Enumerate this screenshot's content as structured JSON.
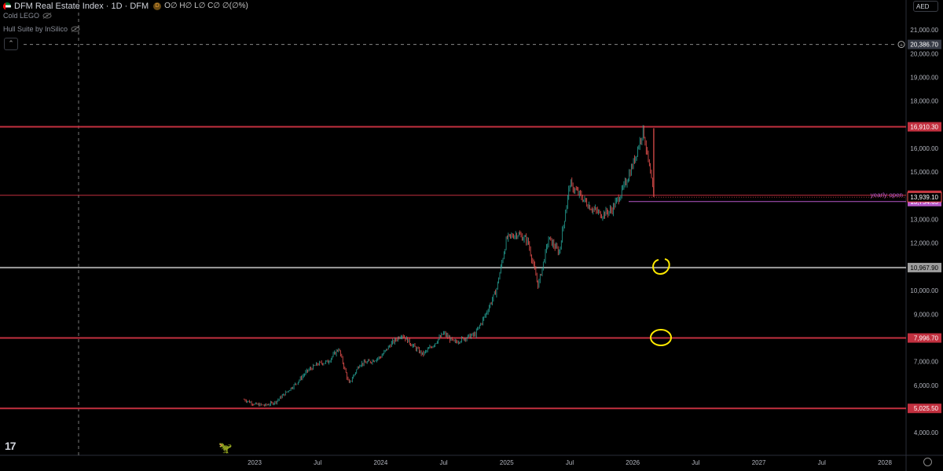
{
  "header": {
    "symbol": "DFM Real Estate Index · 1D · DFM",
    "badge": "D",
    "ohlc": "O∅ H∅ L∅ C∅ ∅(∅%)"
  },
  "indicators": [
    {
      "label": "Cold LEGO"
    },
    {
      "label": "Hull Suite by InSilico"
    }
  ],
  "currency": "AED",
  "crosshair_price": "20,386.70",
  "colors": {
    "background": "#000000",
    "up": "#26a69a",
    "down": "#ef5350",
    "level": "#c2303f",
    "grey_level": "#9e9e9e",
    "annotation": "#ffea00",
    "purple": "#b659c9"
  },
  "chart_data": {
    "type": "candlestick",
    "y_ticks": [
      4000,
      5000,
      6000,
      7000,
      8000,
      9000,
      10000,
      11000,
      12000,
      13000,
      14000,
      15000,
      16000,
      17000,
      18000,
      19000,
      20000,
      21000
    ],
    "y_tick_labels": [
      "4,000.00",
      "5,000.00",
      "6,000.00",
      "7,000.00",
      "8,000.00",
      "9,000.00",
      "10,000.00",
      "11,000.00",
      "12,000.00",
      "13,000.00",
      "14,000.00",
      "15,000.00",
      "16,000.00",
      "17,000.00",
      "18,000.00",
      "19,000.00",
      "20,000.00",
      "21,000.00"
    ],
    "x_ticks": [
      {
        "label": "2023",
        "date": "2023-01"
      },
      {
        "label": "Jul",
        "date": "2023-07"
      },
      {
        "label": "2024",
        "date": "2024-01"
      },
      {
        "label": "Jul",
        "date": "2024-07"
      },
      {
        "label": "2025",
        "date": "2025-01"
      },
      {
        "label": "Jul",
        "date": "2025-07"
      },
      {
        "label": "2026",
        "date": "2026-01"
      },
      {
        "label": "Jul",
        "date": "2026-07"
      },
      {
        "label": "2027",
        "date": "2027-01"
      },
      {
        "label": "Jul",
        "date": "2027-07"
      },
      {
        "label": "2028",
        "date": "2028-01"
      }
    ],
    "levels": [
      {
        "value": 16910.3,
        "label": "16,910.30",
        "color": "#c2303f"
      },
      {
        "value": 14020.6,
        "label": "14,020.60",
        "color": "#c2303f"
      },
      {
        "value": 10967.9,
        "label": "10,967.90",
        "color": "#9e9e9e"
      },
      {
        "value": 7996.7,
        "label": "7,996.70",
        "color": "#c2303f"
      },
      {
        "value": 5025.5,
        "label": "5,025.50",
        "color": "#c2303f"
      }
    ],
    "yearly_open": {
      "value": 13754.65,
      "label": "13,754.65",
      "text": "yearly open"
    },
    "last_price": {
      "value": 13939.1,
      "label": "13,939.10"
    },
    "price_path": [
      [
        "2022-12",
        5400
      ],
      [
        "2023-01",
        5200
      ],
      [
        "2023-02",
        5150
      ],
      [
        "2023-03",
        5300
      ],
      [
        "2023-04",
        5700
      ],
      [
        "2023-05",
        6100
      ],
      [
        "2023-06",
        6600
      ],
      [
        "2023-07",
        6900
      ],
      [
        "2023-08",
        7000
      ],
      [
        "2023-09",
        7550
      ],
      [
        "2023-10",
        6050
      ],
      [
        "2023-11",
        6900
      ],
      [
        "2023-12",
        7000
      ],
      [
        "2024-01",
        7200
      ],
      [
        "2024-02",
        7750
      ],
      [
        "2024-03",
        8150
      ],
      [
        "2024-04",
        7700
      ],
      [
        "2024-05",
        7300
      ],
      [
        "2024-06",
        7700
      ],
      [
        "2024-07",
        8200
      ],
      [
        "2024-08",
        7800
      ],
      [
        "2024-09",
        8000
      ],
      [
        "2024-10",
        8150
      ],
      [
        "2024-11",
        9000
      ],
      [
        "2024-12",
        10000
      ],
      [
        "2025-01",
        12200
      ],
      [
        "2025-02",
        12400
      ],
      [
        "2025-03",
        12100
      ],
      [
        "2025-04",
        10200
      ],
      [
        "2025-05",
        12200
      ],
      [
        "2025-06",
        11600
      ],
      [
        "2025-07",
        14500
      ],
      [
        "2025-08",
        14000
      ],
      [
        "2025-09",
        13500
      ],
      [
        "2025-10",
        13200
      ],
      [
        "2025-11",
        13400
      ],
      [
        "2025-12",
        14200
      ],
      [
        "2026-01",
        15300
      ],
      [
        "2026-02",
        16800
      ],
      [
        "2026-03",
        13950
      ]
    ]
  }
}
